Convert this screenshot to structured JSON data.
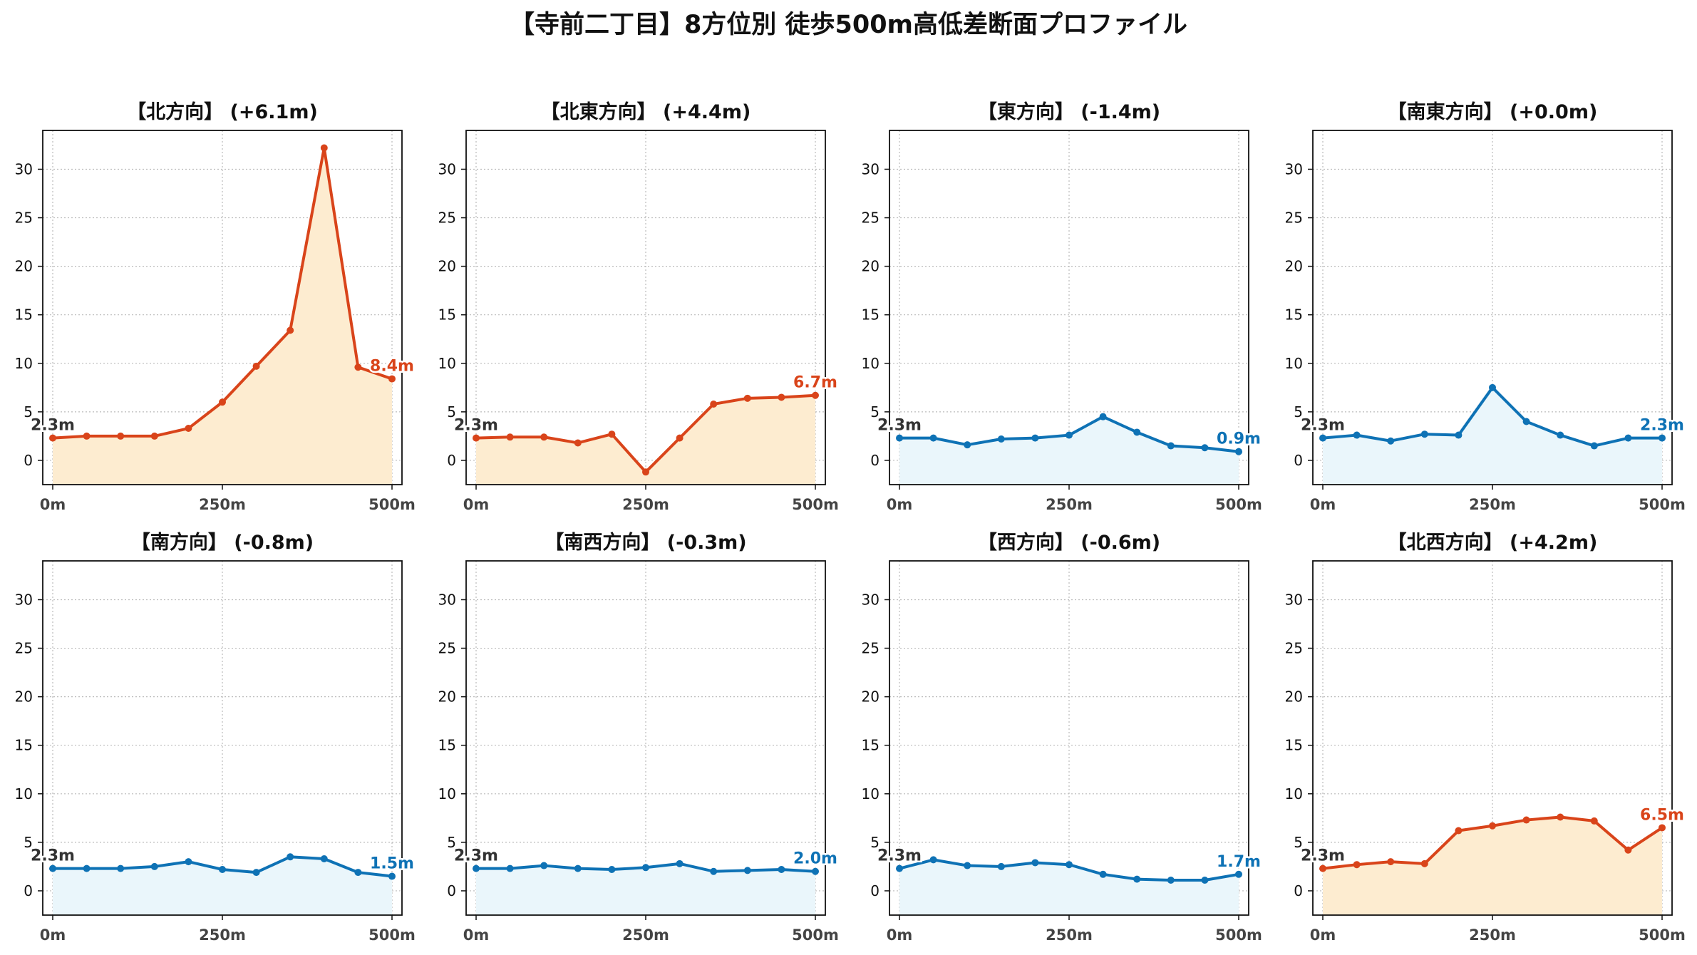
{
  "title": "【寺前二丁目】8方位別 徒歩500m高低差断面プロファイル",
  "colors": {
    "up_line": "#d9441a",
    "up_fill": "#fdecd0",
    "down_line": "#0e72b5",
    "down_fill": "#eaf6fb",
    "start_label": "#333333",
    "grid": "#bbbbbb"
  },
  "chart_data": [
    {
      "type": "area",
      "title": "【北方向】 (+6.1m)",
      "trend": "up",
      "x": [
        0,
        50,
        100,
        150,
        200,
        250,
        300,
        350,
        400,
        450,
        500
      ],
      "y": [
        2.3,
        2.5,
        2.5,
        2.5,
        3.3,
        6.0,
        9.7,
        13.4,
        32.2,
        9.6,
        8.4
      ],
      "xticks": [
        "0m",
        "250m",
        "500m"
      ],
      "yticks": [
        0,
        5,
        10,
        15,
        20,
        25,
        30
      ],
      "ylim": [
        -2.5,
        34
      ],
      "start_label": "2.3m",
      "end_label": "8.4m",
      "grid": true
    },
    {
      "type": "area",
      "title": "【北東方向】 (+4.4m)",
      "trend": "up",
      "x": [
        0,
        50,
        100,
        150,
        200,
        250,
        300,
        350,
        400,
        450,
        500
      ],
      "y": [
        2.3,
        2.4,
        2.4,
        1.8,
        2.7,
        -1.2,
        2.3,
        5.8,
        6.4,
        6.5,
        6.7
      ],
      "xticks": [
        "0m",
        "250m",
        "500m"
      ],
      "yticks": [
        0,
        5,
        10,
        15,
        20,
        25,
        30
      ],
      "ylim": [
        -2.5,
        34
      ],
      "start_label": "2.3m",
      "end_label": "6.7m",
      "grid": true
    },
    {
      "type": "area",
      "title": "【東方向】 (-1.4m)",
      "trend": "down",
      "x": [
        0,
        50,
        100,
        150,
        200,
        250,
        300,
        350,
        400,
        450,
        500
      ],
      "y": [
        2.3,
        2.3,
        1.6,
        2.2,
        2.3,
        2.6,
        4.5,
        2.9,
        1.5,
        1.3,
        0.9
      ],
      "xticks": [
        "0m",
        "250m",
        "500m"
      ],
      "yticks": [
        0,
        5,
        10,
        15,
        20,
        25,
        30
      ],
      "ylim": [
        -2.5,
        34
      ],
      "start_label": "2.3m",
      "end_label": "0.9m",
      "grid": true
    },
    {
      "type": "area",
      "title": "【南東方向】 (+0.0m)",
      "trend": "down",
      "x": [
        0,
        50,
        100,
        150,
        200,
        250,
        300,
        350,
        400,
        450,
        500
      ],
      "y": [
        2.3,
        2.6,
        2.0,
        2.7,
        2.6,
        7.5,
        4.0,
        2.6,
        1.5,
        2.3,
        2.3
      ],
      "xticks": [
        "0m",
        "250m",
        "500m"
      ],
      "yticks": [
        0,
        5,
        10,
        15,
        20,
        25,
        30
      ],
      "ylim": [
        -2.5,
        34
      ],
      "start_label": "2.3m",
      "end_label": "2.3m",
      "grid": true
    },
    {
      "type": "area",
      "title": "【南方向】 (-0.8m)",
      "trend": "down",
      "x": [
        0,
        50,
        100,
        150,
        200,
        250,
        300,
        350,
        400,
        450,
        500
      ],
      "y": [
        2.3,
        2.3,
        2.3,
        2.5,
        3.0,
        2.2,
        1.9,
        3.5,
        3.3,
        1.9,
        1.5
      ],
      "xticks": [
        "0m",
        "250m",
        "500m"
      ],
      "yticks": [
        0,
        5,
        10,
        15,
        20,
        25,
        30
      ],
      "ylim": [
        -2.5,
        34
      ],
      "start_label": "2.3m",
      "end_label": "1.5m",
      "grid": true
    },
    {
      "type": "area",
      "title": "【南西方向】 (-0.3m)",
      "trend": "down",
      "x": [
        0,
        50,
        100,
        150,
        200,
        250,
        300,
        350,
        400,
        450,
        500
      ],
      "y": [
        2.3,
        2.3,
        2.6,
        2.3,
        2.2,
        2.4,
        2.8,
        2.0,
        2.1,
        2.2,
        2.0
      ],
      "xticks": [
        "0m",
        "250m",
        "500m"
      ],
      "yticks": [
        0,
        5,
        10,
        15,
        20,
        25,
        30
      ],
      "ylim": [
        -2.5,
        34
      ],
      "start_label": "2.3m",
      "end_label": "2.0m",
      "grid": true
    },
    {
      "type": "area",
      "title": "【西方向】 (-0.6m)",
      "trend": "down",
      "x": [
        0,
        50,
        100,
        150,
        200,
        250,
        300,
        350,
        400,
        450,
        500
      ],
      "y": [
        2.3,
        3.2,
        2.6,
        2.5,
        2.9,
        2.7,
        1.7,
        1.2,
        1.1,
        1.1,
        1.7
      ],
      "xticks": [
        "0m",
        "250m",
        "500m"
      ],
      "yticks": [
        0,
        5,
        10,
        15,
        20,
        25,
        30
      ],
      "ylim": [
        -2.5,
        34
      ],
      "start_label": "2.3m",
      "end_label": "1.7m",
      "grid": true
    },
    {
      "type": "area",
      "title": "【北西方向】 (+4.2m)",
      "trend": "up",
      "x": [
        0,
        50,
        100,
        150,
        200,
        250,
        300,
        350,
        400,
        450,
        500
      ],
      "y": [
        2.3,
        2.7,
        3.0,
        2.8,
        6.2,
        6.7,
        7.3,
        7.6,
        7.2,
        4.2,
        6.5
      ],
      "xticks": [
        "0m",
        "250m",
        "500m"
      ],
      "yticks": [
        0,
        5,
        10,
        15,
        20,
        25,
        30
      ],
      "ylim": [
        -2.5,
        34
      ],
      "start_label": "2.3m",
      "end_label": "6.5m",
      "grid": true
    }
  ]
}
